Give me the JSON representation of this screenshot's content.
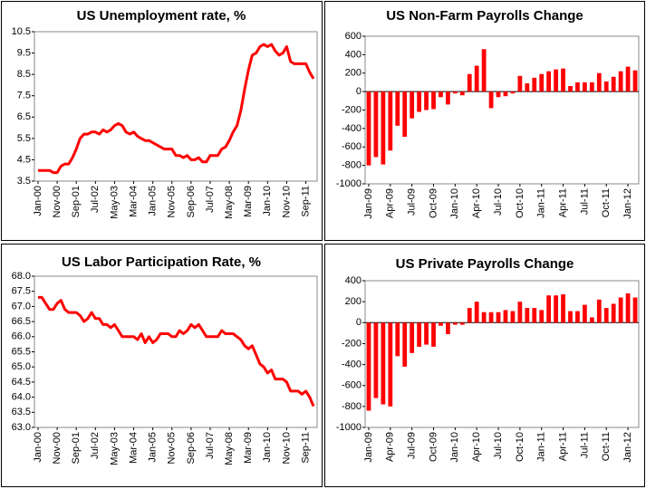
{
  "chart_data": [
    {
      "type": "line",
      "title": "US Unemployment rate, %",
      "categories": [
        "Jan-00",
        null,
        null,
        null,
        null,
        "Nov-00",
        null,
        null,
        null,
        null,
        "Sep-01",
        null,
        null,
        null,
        null,
        "Jul-02",
        null,
        null,
        null,
        null,
        "May-03",
        null,
        null,
        null,
        null,
        "Mar-04",
        null,
        null,
        null,
        null,
        "Jan-05",
        null,
        null,
        null,
        null,
        "Nov-05",
        null,
        null,
        null,
        null,
        "Sep-06",
        null,
        null,
        null,
        null,
        "Jul-07",
        null,
        null,
        null,
        null,
        "May-08",
        null,
        null,
        null,
        null,
        "Mar-09",
        null,
        null,
        null,
        null,
        "Jan-10",
        null,
        null,
        null,
        null,
        "Nov-10",
        null,
        null,
        null,
        null,
        "Sep-11",
        null,
        null
      ],
      "values": [
        4.0,
        4.0,
        4.0,
        4.0,
        3.9,
        3.9,
        4.2,
        4.3,
        4.3,
        4.6,
        5.0,
        5.5,
        5.7,
        5.7,
        5.8,
        5.8,
        5.7,
        5.9,
        5.8,
        5.9,
        6.1,
        6.2,
        6.1,
        5.8,
        5.7,
        5.8,
        5.6,
        5.5,
        5.4,
        5.4,
        5.3,
        5.2,
        5.1,
        5.0,
        5.0,
        5.0,
        4.7,
        4.7,
        4.6,
        4.7,
        4.5,
        4.5,
        4.6,
        4.4,
        4.4,
        4.7,
        4.7,
        4.7,
        5.0,
        5.1,
        5.4,
        5.8,
        6.1,
        6.8,
        7.8,
        8.7,
        9.4,
        9.5,
        9.8,
        9.9,
        9.8,
        9.9,
        9.6,
        9.4,
        9.5,
        9.8,
        9.1,
        9.0,
        9.0,
        9.0,
        9.0,
        8.6,
        8.3
      ],
      "color": "#ff0000",
      "ylim": [
        3.5,
        10.5
      ],
      "yticks": [
        3.5,
        4.5,
        5.5,
        6.5,
        7.5,
        8.5,
        9.5,
        10.5
      ]
    },
    {
      "type": "bar",
      "title": "US Non-Farm Payrolls Change",
      "categories": [
        "Jan-09",
        null,
        null,
        "Apr-09",
        null,
        null,
        "Jul-09",
        null,
        null,
        "Oct-09",
        null,
        null,
        "Jan-10",
        null,
        null,
        "Apr-10",
        null,
        null,
        "Jul-10",
        null,
        null,
        "Oct-10",
        null,
        null,
        "Jan-11",
        null,
        null,
        "Apr-11",
        null,
        null,
        "Jul-11",
        null,
        null,
        "Oct-11",
        null,
        null,
        "Jan-12",
        null
      ],
      "values": [
        -800,
        -710,
        -790,
        -640,
        -370,
        -490,
        -290,
        -220,
        -200,
        -190,
        -60,
        -140,
        -20,
        -40,
        190,
        280,
        460,
        -180,
        -60,
        -50,
        -20,
        170,
        90,
        150,
        190,
        220,
        240,
        250,
        60,
        100,
        100,
        100,
        200,
        110,
        160,
        220,
        270,
        230
      ],
      "color": "#ff0000",
      "ylim": [
        -1000,
        600
      ],
      "yticks": [
        -1000,
        -800,
        -600,
        -400,
        -200,
        0,
        200,
        400,
        600
      ]
    },
    {
      "type": "line",
      "title": "US Labor Participation Rate, %",
      "categories": [
        "Jan-00",
        null,
        null,
        null,
        null,
        "Nov-00",
        null,
        null,
        null,
        null,
        "Sep-01",
        null,
        null,
        null,
        null,
        "Jul-02",
        null,
        null,
        null,
        null,
        "May-03",
        null,
        null,
        null,
        null,
        "Mar-04",
        null,
        null,
        null,
        null,
        "Jan-05",
        null,
        null,
        null,
        null,
        "Nov-05",
        null,
        null,
        null,
        null,
        "Sep-06",
        null,
        null,
        null,
        null,
        "Jul-07",
        null,
        null,
        null,
        null,
        "May-08",
        null,
        null,
        null,
        null,
        "Mar-09",
        null,
        null,
        null,
        null,
        "Jan-10",
        null,
        null,
        null,
        null,
        "Nov-10",
        null,
        null,
        null,
        null,
        "Sep-11",
        null,
        null
      ],
      "values": [
        67.3,
        67.3,
        67.1,
        66.9,
        66.9,
        67.1,
        67.2,
        66.9,
        66.8,
        66.8,
        66.8,
        66.7,
        66.5,
        66.6,
        66.8,
        66.6,
        66.6,
        66.4,
        66.4,
        66.3,
        66.4,
        66.2,
        66.0,
        66.0,
        66.0,
        66.0,
        65.9,
        66.1,
        65.8,
        66.0,
        65.8,
        65.9,
        66.1,
        66.1,
        66.1,
        66.0,
        66.0,
        66.2,
        66.1,
        66.2,
        66.4,
        66.3,
        66.4,
        66.2,
        66.0,
        66.0,
        66.0,
        66.0,
        66.2,
        66.1,
        66.1,
        66.1,
        66.0,
        65.9,
        65.7,
        65.6,
        65.7,
        65.4,
        65.1,
        65.0,
        64.8,
        64.9,
        64.6,
        64.6,
        64.6,
        64.5,
        64.2,
        64.2,
        64.2,
        64.1,
        64.2,
        64.0,
        63.7
      ],
      "color": "#ff0000",
      "ylim": [
        63,
        68
      ],
      "yticks": [
        {
          "value": 63,
          "label": "63.0"
        },
        {
          "value": 63.5,
          "label": "63.5"
        },
        {
          "value": 64,
          "label": "64.0"
        },
        {
          "value": 64.5,
          "label": "64.5"
        },
        {
          "value": 65,
          "label": "65.0"
        },
        {
          "value": 65.5,
          "label": "65.5"
        },
        {
          "value": 66,
          "label": "66.0"
        },
        {
          "value": 66.5,
          "label": "66.5"
        },
        {
          "value": 67,
          "label": "67.0"
        },
        {
          "value": 67.5,
          "label": "67.5"
        },
        {
          "value": 68,
          "label": "68.0"
        }
      ]
    },
    {
      "type": "bar",
      "title": "US Private Payrolls Change",
      "categories": [
        "Jan-09",
        null,
        null,
        "Apr-09",
        null,
        null,
        "Jul-09",
        null,
        null,
        "Oct-09",
        null,
        null,
        "Jan-10",
        null,
        null,
        "Apr-10",
        null,
        null,
        "Jul-10",
        null,
        null,
        "Oct-10",
        null,
        null,
        "Jan-11",
        null,
        null,
        "Apr-11",
        null,
        null,
        "Jul-11",
        null,
        null,
        "Oct-11",
        null,
        null,
        "Jan-12",
        null
      ],
      "values": [
        -840,
        -720,
        -780,
        -800,
        -320,
        -420,
        -290,
        -230,
        -210,
        -230,
        -30,
        -110,
        -20,
        -20,
        140,
        200,
        100,
        100,
        100,
        120,
        110,
        200,
        140,
        140,
        120,
        260,
        260,
        270,
        110,
        110,
        170,
        50,
        220,
        140,
        180,
        240,
        280,
        240
      ],
      "color": "#ff0000",
      "ylim": [
        -1000,
        400
      ],
      "yticks": [
        -1000,
        -800,
        -600,
        -400,
        -200,
        0,
        200,
        400
      ]
    }
  ]
}
